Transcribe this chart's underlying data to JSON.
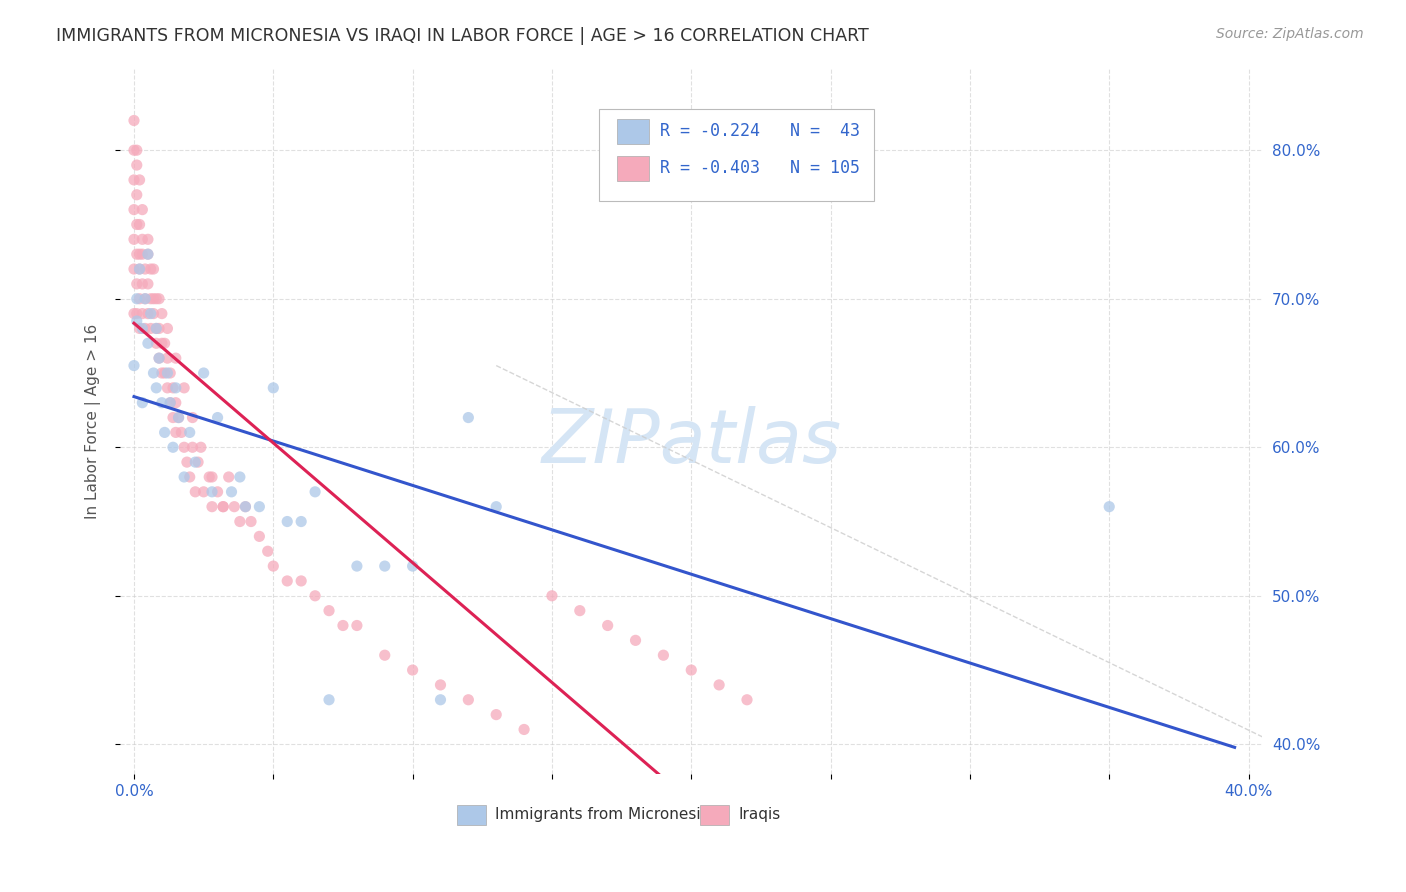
{
  "title": "IMMIGRANTS FROM MICRONESIA VS IRAQI IN LABOR FORCE | AGE > 16 CORRELATION CHART",
  "source": "Source: ZipAtlas.com",
  "ylabel": "In Labor Force | Age > 16",
  "xlim": [
    -0.005,
    0.405
  ],
  "ylim": [
    0.38,
    0.855
  ],
  "x_ticks": [
    0.0,
    0.05,
    0.1,
    0.15,
    0.2,
    0.25,
    0.3,
    0.35,
    0.4
  ],
  "x_tick_labels": [
    "0.0%",
    "",
    "",
    "",
    "",
    "",
    "",
    "",
    "40.0%"
  ],
  "y_ticks_right": [
    0.4,
    0.5,
    0.6,
    0.7,
    0.8
  ],
  "y_tick_labels_right": [
    "40.0%",
    "50.0%",
    "60.0%",
    "70.0%",
    "80.0%"
  ],
  "legend_r1": "R = -0.224",
  "legend_n1": "N =  43",
  "legend_r2": "R = -0.403",
  "legend_n2": "N = 105",
  "color_micro": "#adc8e8",
  "color_micro_edge": "#adc8e8",
  "color_iraqi": "#f5aabb",
  "color_iraqi_edge": "#f5aabb",
  "color_micro_line": "#3355cc",
  "color_iraqi_line": "#dd2255",
  "color_diag": "#cccccc",
  "watermark_color": "#d5e5f5",
  "background_color": "#ffffff",
  "grid_color": "#cccccc",
  "title_color": "#333333",
  "axis_color": "#3366cc",
  "source_color": "#999999",
  "ylabel_color": "#555555",
  "micro_x": [
    0.0,
    0.001,
    0.001,
    0.002,
    0.003,
    0.003,
    0.004,
    0.005,
    0.005,
    0.006,
    0.007,
    0.008,
    0.008,
    0.009,
    0.01,
    0.011,
    0.012,
    0.013,
    0.014,
    0.015,
    0.016,
    0.018,
    0.02,
    0.022,
    0.025,
    0.028,
    0.03,
    0.035,
    0.038,
    0.04,
    0.045,
    0.05,
    0.055,
    0.06,
    0.065,
    0.07,
    0.08,
    0.09,
    0.1,
    0.11,
    0.12,
    0.13,
    0.35
  ],
  "micro_y": [
    0.655,
    0.685,
    0.7,
    0.72,
    0.63,
    0.68,
    0.7,
    0.67,
    0.73,
    0.69,
    0.65,
    0.68,
    0.64,
    0.66,
    0.63,
    0.61,
    0.65,
    0.63,
    0.6,
    0.64,
    0.62,
    0.58,
    0.61,
    0.59,
    0.65,
    0.57,
    0.62,
    0.57,
    0.58,
    0.56,
    0.56,
    0.64,
    0.55,
    0.55,
    0.57,
    0.43,
    0.52,
    0.52,
    0.52,
    0.43,
    0.62,
    0.56,
    0.56
  ],
  "iraqi_x": [
    0.0,
    0.0,
    0.0,
    0.0,
    0.0,
    0.0,
    0.0,
    0.001,
    0.001,
    0.001,
    0.001,
    0.001,
    0.001,
    0.002,
    0.002,
    0.002,
    0.002,
    0.002,
    0.003,
    0.003,
    0.003,
    0.003,
    0.004,
    0.004,
    0.004,
    0.005,
    0.005,
    0.005,
    0.006,
    0.006,
    0.006,
    0.007,
    0.007,
    0.008,
    0.008,
    0.008,
    0.009,
    0.009,
    0.01,
    0.01,
    0.01,
    0.011,
    0.011,
    0.012,
    0.012,
    0.013,
    0.013,
    0.014,
    0.014,
    0.015,
    0.015,
    0.016,
    0.017,
    0.018,
    0.019,
    0.02,
    0.021,
    0.022,
    0.023,
    0.025,
    0.027,
    0.028,
    0.03,
    0.032,
    0.034,
    0.036,
    0.038,
    0.04,
    0.042,
    0.045,
    0.048,
    0.05,
    0.055,
    0.06,
    0.065,
    0.07,
    0.075,
    0.08,
    0.09,
    0.1,
    0.11,
    0.12,
    0.13,
    0.14,
    0.15,
    0.16,
    0.17,
    0.18,
    0.19,
    0.2,
    0.21,
    0.22,
    0.001,
    0.002,
    0.003,
    0.005,
    0.007,
    0.009,
    0.012,
    0.015,
    0.018,
    0.021,
    0.024,
    0.028,
    0.032
  ],
  "iraqi_y": [
    0.69,
    0.72,
    0.74,
    0.76,
    0.78,
    0.8,
    0.82,
    0.73,
    0.75,
    0.77,
    0.79,
    0.69,
    0.71,
    0.73,
    0.75,
    0.68,
    0.7,
    0.72,
    0.74,
    0.69,
    0.71,
    0.73,
    0.7,
    0.72,
    0.68,
    0.71,
    0.73,
    0.69,
    0.7,
    0.72,
    0.68,
    0.7,
    0.69,
    0.68,
    0.7,
    0.67,
    0.68,
    0.66,
    0.67,
    0.69,
    0.65,
    0.67,
    0.65,
    0.66,
    0.64,
    0.65,
    0.63,
    0.64,
    0.62,
    0.63,
    0.61,
    0.62,
    0.61,
    0.6,
    0.59,
    0.58,
    0.6,
    0.57,
    0.59,
    0.57,
    0.58,
    0.56,
    0.57,
    0.56,
    0.58,
    0.56,
    0.55,
    0.56,
    0.55,
    0.54,
    0.53,
    0.52,
    0.51,
    0.51,
    0.5,
    0.49,
    0.48,
    0.48,
    0.46,
    0.45,
    0.44,
    0.43,
    0.42,
    0.41,
    0.5,
    0.49,
    0.48,
    0.47,
    0.46,
    0.45,
    0.44,
    0.43,
    0.8,
    0.78,
    0.76,
    0.74,
    0.72,
    0.7,
    0.68,
    0.66,
    0.64,
    0.62,
    0.6,
    0.58,
    0.56
  ]
}
